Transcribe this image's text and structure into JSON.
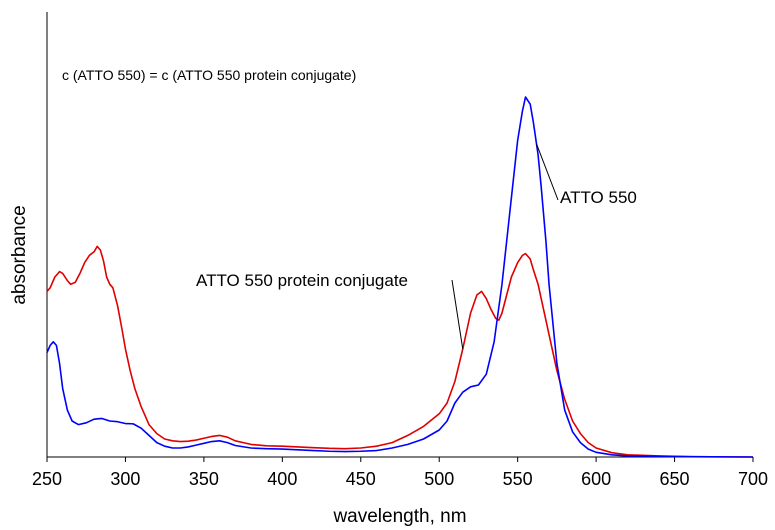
{
  "chart_data": {
    "type": "line",
    "title": "",
    "annotation": "c (ATTO 550) = c (ATTO 550 protein conjugate)",
    "xlabel": "wavelength, nm",
    "ylabel": "absorbance",
    "xlim": [
      250,
      700
    ],
    "ylim": [
      0,
      1.0
    ],
    "x_ticks": [
      250,
      300,
      350,
      400,
      450,
      500,
      550,
      600,
      650,
      700
    ],
    "y_ticks_labeled": false,
    "grid": false,
    "legend": "none (series labeled directly on plot)",
    "series": [
      {
        "name": "ATTO 550",
        "color": "#0000ff",
        "points": [
          [
            250,
            0.29
          ],
          [
            252,
            0.31
          ],
          [
            254,
            0.32
          ],
          [
            256,
            0.31
          ],
          [
            258,
            0.26
          ],
          [
            260,
            0.19
          ],
          [
            263,
            0.13
          ],
          [
            266,
            0.1
          ],
          [
            270,
            0.09
          ],
          [
            275,
            0.095
          ],
          [
            280,
            0.105
          ],
          [
            285,
            0.107
          ],
          [
            290,
            0.1
          ],
          [
            295,
            0.098
          ],
          [
            300,
            0.093
          ],
          [
            305,
            0.092
          ],
          [
            310,
            0.08
          ],
          [
            315,
            0.06
          ],
          [
            320,
            0.04
          ],
          [
            325,
            0.03
          ],
          [
            330,
            0.025
          ],
          [
            335,
            0.025
          ],
          [
            340,
            0.028
          ],
          [
            345,
            0.033
          ],
          [
            350,
            0.038
          ],
          [
            355,
            0.043
          ],
          [
            360,
            0.045
          ],
          [
            365,
            0.04
          ],
          [
            370,
            0.032
          ],
          [
            380,
            0.025
          ],
          [
            390,
            0.023
          ],
          [
            400,
            0.022
          ],
          [
            410,
            0.02
          ],
          [
            420,
            0.018
          ],
          [
            430,
            0.016
          ],
          [
            440,
            0.015
          ],
          [
            450,
            0.016
          ],
          [
            460,
            0.018
          ],
          [
            470,
            0.025
          ],
          [
            480,
            0.035
          ],
          [
            490,
            0.05
          ],
          [
            500,
            0.075
          ],
          [
            505,
            0.1
          ],
          [
            510,
            0.15
          ],
          [
            515,
            0.18
          ],
          [
            520,
            0.195
          ],
          [
            525,
            0.2
          ],
          [
            530,
            0.23
          ],
          [
            535,
            0.32
          ],
          [
            540,
            0.48
          ],
          [
            545,
            0.68
          ],
          [
            550,
            0.88
          ],
          [
            553,
            0.96
          ],
          [
            555,
            1.0
          ],
          [
            558,
            0.98
          ],
          [
            560,
            0.93
          ],
          [
            563,
            0.84
          ],
          [
            565,
            0.75
          ],
          [
            568,
            0.6
          ],
          [
            570,
            0.48
          ],
          [
            575,
            0.26
          ],
          [
            580,
            0.13
          ],
          [
            585,
            0.07
          ],
          [
            590,
            0.04
          ],
          [
            595,
            0.022
          ],
          [
            600,
            0.013
          ],
          [
            610,
            0.006
          ],
          [
            620,
            0.003
          ],
          [
            640,
            0.002
          ],
          [
            660,
            0.001
          ],
          [
            700,
            0.0
          ]
        ]
      },
      {
        "name": "ATTO 550 protein conjugate",
        "color": "#e00000",
        "points": [
          [
            250,
            0.46
          ],
          [
            252,
            0.47
          ],
          [
            255,
            0.5
          ],
          [
            258,
            0.515
          ],
          [
            260,
            0.51
          ],
          [
            263,
            0.49
          ],
          [
            265,
            0.48
          ],
          [
            268,
            0.485
          ],
          [
            271,
            0.51
          ],
          [
            274,
            0.54
          ],
          [
            277,
            0.56
          ],
          [
            280,
            0.57
          ],
          [
            282,
            0.585
          ],
          [
            284,
            0.575
          ],
          [
            286,
            0.545
          ],
          [
            288,
            0.5
          ],
          [
            290,
            0.48
          ],
          [
            292,
            0.47
          ],
          [
            295,
            0.42
          ],
          [
            298,
            0.35
          ],
          [
            300,
            0.3
          ],
          [
            303,
            0.24
          ],
          [
            306,
            0.19
          ],
          [
            310,
            0.14
          ],
          [
            315,
            0.09
          ],
          [
            320,
            0.065
          ],
          [
            325,
            0.05
          ],
          [
            330,
            0.045
          ],
          [
            335,
            0.043
          ],
          [
            340,
            0.044
          ],
          [
            345,
            0.047
          ],
          [
            350,
            0.052
          ],
          [
            355,
            0.057
          ],
          [
            360,
            0.06
          ],
          [
            365,
            0.055
          ],
          [
            370,
            0.045
          ],
          [
            380,
            0.035
          ],
          [
            390,
            0.031
          ],
          [
            400,
            0.03
          ],
          [
            410,
            0.028
          ],
          [
            420,
            0.026
          ],
          [
            430,
            0.024
          ],
          [
            440,
            0.023
          ],
          [
            450,
            0.025
          ],
          [
            460,
            0.03
          ],
          [
            470,
            0.04
          ],
          [
            480,
            0.06
          ],
          [
            490,
            0.085
          ],
          [
            500,
            0.12
          ],
          [
            505,
            0.15
          ],
          [
            510,
            0.21
          ],
          [
            515,
            0.3
          ],
          [
            520,
            0.4
          ],
          [
            524,
            0.45
          ],
          [
            527,
            0.46
          ],
          [
            530,
            0.44
          ],
          [
            533,
            0.41
          ],
          [
            536,
            0.385
          ],
          [
            538,
            0.38
          ],
          [
            540,
            0.4
          ],
          [
            543,
            0.45
          ],
          [
            546,
            0.5
          ],
          [
            550,
            0.54
          ],
          [
            553,
            0.56
          ],
          [
            555,
            0.565
          ],
          [
            558,
            0.55
          ],
          [
            560,
            0.52
          ],
          [
            563,
            0.48
          ],
          [
            566,
            0.42
          ],
          [
            570,
            0.34
          ],
          [
            575,
            0.24
          ],
          [
            580,
            0.16
          ],
          [
            585,
            0.1
          ],
          [
            590,
            0.065
          ],
          [
            595,
            0.04
          ],
          [
            600,
            0.025
          ],
          [
            610,
            0.012
          ],
          [
            620,
            0.006
          ],
          [
            640,
            0.003
          ],
          [
            660,
            0.001
          ],
          [
            700,
            0.0
          ]
        ]
      }
    ],
    "series_labels": [
      {
        "text": "ATTO 550",
        "series": "ATTO 550"
      },
      {
        "text": "ATTO 550 protein conjugate",
        "series": "ATTO 550 protein conjugate"
      }
    ]
  }
}
